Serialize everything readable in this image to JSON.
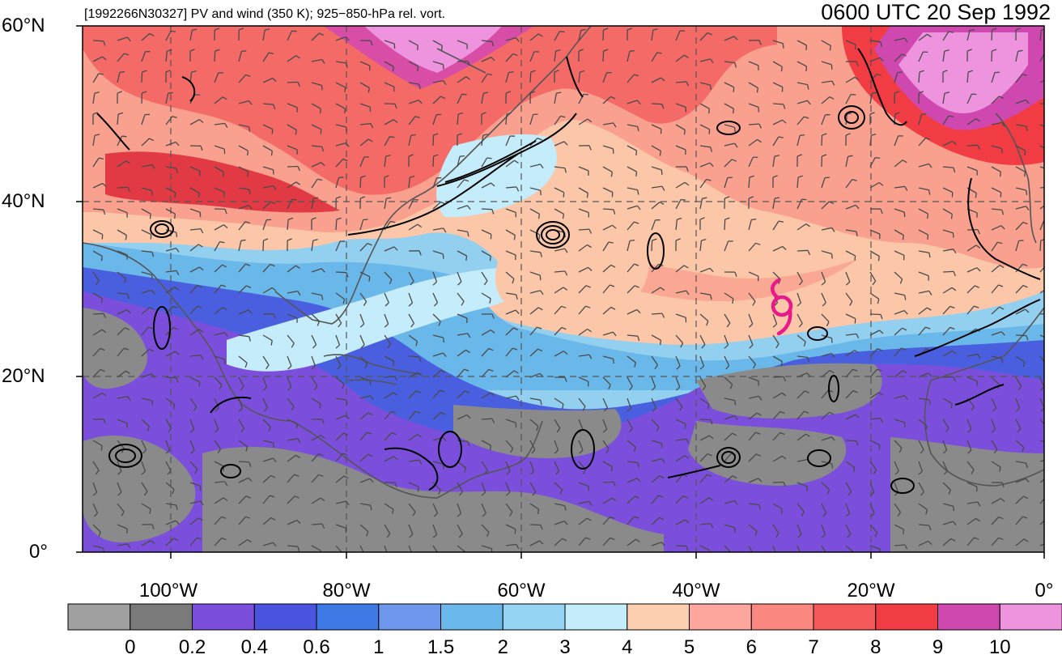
{
  "header": {
    "left_title": "[1992266N30327] PV and wind (350 K); 925−850-hPa rel. vort.",
    "right_title": "0600 UTC 20 Sep 1992"
  },
  "map": {
    "lat_labels": [
      "60°N",
      "40°N",
      "20°N",
      "0°"
    ],
    "lon_labels": [
      "100°W",
      "80°W",
      "60°W",
      "40°W",
      "20°W",
      "0°"
    ],
    "storm_symbol": "tropical-cyclone-icon",
    "storm_color": "#e8198a"
  },
  "colorbar": {
    "labels": [
      "0",
      "0.2",
      "0.4",
      "0.6",
      "1",
      "1.5",
      "2",
      "3",
      "4",
      "5",
      "6",
      "7",
      "8",
      "9",
      "10"
    ],
    "colors": [
      "#a0a0a0",
      "#7a7a7a",
      "#7b4fdc",
      "#4a54de",
      "#3d7ae6",
      "#6d97ea",
      "#6ab8ea",
      "#96d4f4",
      "#c4ecfa",
      "#fccfb0",
      "#fca69e",
      "#fa8880",
      "#f6595a",
      "#f03c42",
      "#cf48b0",
      "#ee94de"
    ]
  }
}
